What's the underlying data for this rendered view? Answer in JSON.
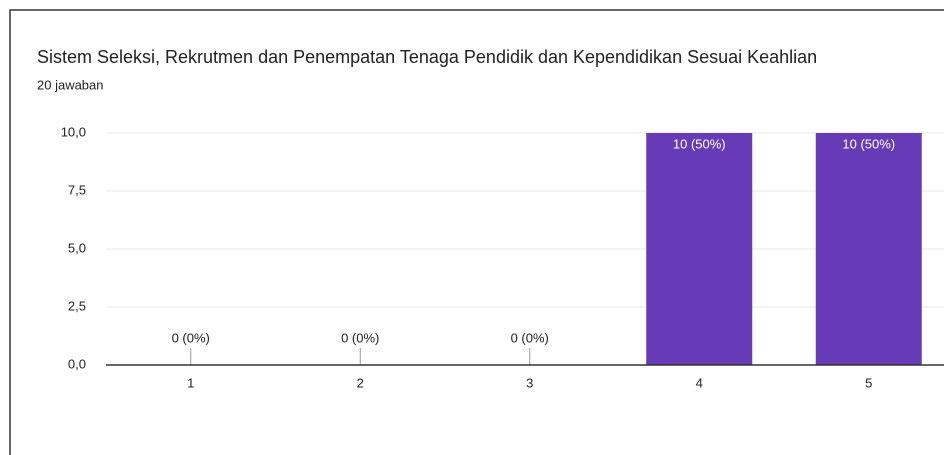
{
  "chart_data": {
    "type": "bar",
    "title": "Sistem Seleksi, Rekrutmen dan Penempatan Tenaga Pendidik dan Kependidikan Sesuai Keahlian",
    "subtitle": "20 jawaban",
    "categories": [
      "1",
      "2",
      "3",
      "4",
      "5"
    ],
    "values": [
      0,
      0,
      0,
      10,
      10
    ],
    "value_labels": [
      "0 (0%)",
      "0 (0%)",
      "0 (0%)",
      "10 (50%)",
      "10 (50%)"
    ],
    "color": "#673ab7",
    "ylim": [
      0,
      10
    ],
    "yticks": [
      {
        "value": 0,
        "label": "0,0"
      },
      {
        "value": 2.5,
        "label": "2,5"
      },
      {
        "value": 5,
        "label": "5,0"
      },
      {
        "value": 7.5,
        "label": "7,5"
      },
      {
        "value": 10,
        "label": "10,0"
      }
    ],
    "grid": true
  }
}
